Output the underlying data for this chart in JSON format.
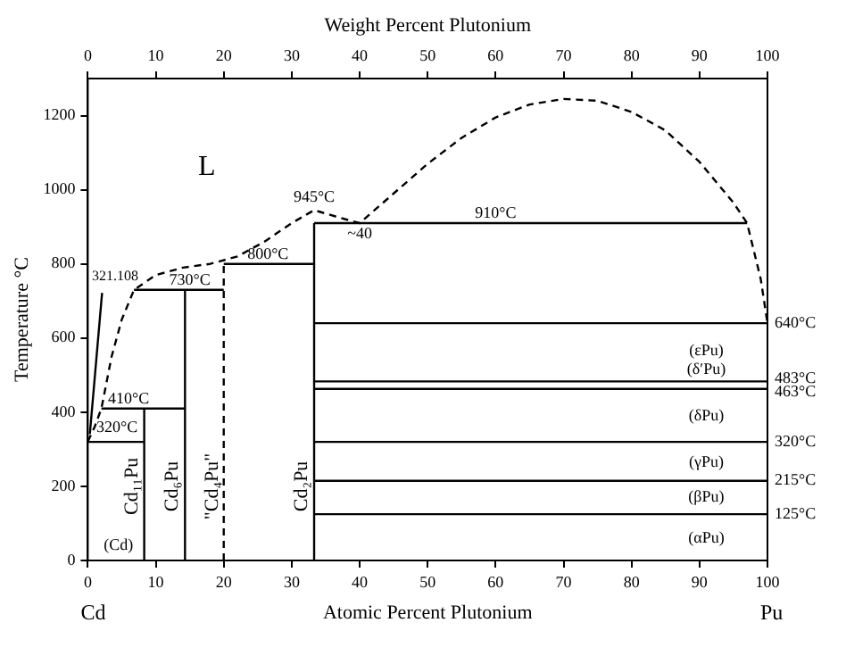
{
  "chart_data": {
    "type": "line",
    "xlabel": "Atomic Percent Plutonium",
    "x2label": "Weight Percent Plutonium",
    "ylabel": "Temperature °C",
    "xlim": [
      0,
      100
    ],
    "xticks": [
      0,
      10,
      20,
      30,
      40,
      50,
      60,
      70,
      80,
      90,
      100
    ],
    "x2lim": [
      0,
      100
    ],
    "x2ticks": [
      0,
      10,
      20,
      30,
      40,
      50,
      60,
      70,
      80,
      90,
      100
    ],
    "ylim": [
      0,
      1300
    ],
    "yticks": [
      0,
      200,
      400,
      600,
      800,
      1000,
      1200
    ],
    "grid": false,
    "legend": false,
    "marker": "none",
    "series": [
      {
        "color": "#000000",
        "line_style": "dashed",
        "x": [
          0,
          1,
          2,
          3.5,
          5,
          6.8,
          10,
          14,
          18,
          22,
          26,
          30,
          33.3,
          37,
          40,
          45,
          50,
          55,
          60,
          65,
          70,
          75,
          80,
          85,
          90,
          95,
          97,
          99,
          100
        ],
        "values": [
          321,
          360,
          410,
          550,
          650,
          730,
          770,
          790,
          800,
          820,
          860,
          910,
          945,
          925,
          910,
          990,
          1070,
          1140,
          1195,
          1230,
          1245,
          1240,
          1210,
          1160,
          1075,
          965,
          910,
          760,
          640
        ]
      },
      {
        "type": "line",
        "color": "#000000",
        "line_style": "solid",
        "x": [
          0.3,
          2.1
        ],
        "values": [
          341,
          722
        ]
      },
      {
        "type": "line",
        "color": "#000000",
        "line_style": "solid",
        "x": [
          0,
          8.3
        ],
        "values": [
          320,
          320
        ]
      },
      {
        "type": "line",
        "color": "#000000",
        "line_style": "solid",
        "x": [
          2,
          14.3
        ],
        "values": [
          410,
          410
        ]
      },
      {
        "type": "line",
        "color": "#000000",
        "line_style": "solid",
        "x": [
          6.8,
          20
        ],
        "values": [
          730,
          730
        ]
      },
      {
        "type": "line",
        "color": "#000000",
        "line_style": "solid",
        "x": [
          20,
          33.3
        ],
        "values": [
          800,
          800
        ]
      },
      {
        "type": "line",
        "color": "#000000",
        "line_style": "solid",
        "x": [
          33.3,
          97
        ],
        "values": [
          910,
          910
        ]
      },
      {
        "type": "line",
        "color": "#000000",
        "line_style": "solid",
        "x": [
          8.3,
          8.3
        ],
        "values": [
          0,
          410
        ]
      },
      {
        "type": "line",
        "color": "#000000",
        "line_style": "solid",
        "x": [
          14.3,
          14.3
        ],
        "values": [
          0,
          730
        ]
      },
      {
        "type": "line",
        "color": "#000000",
        "line_style": "dashed",
        "x": [
          20,
          20
        ],
        "values": [
          0,
          800
        ]
      },
      {
        "type": "line",
        "color": "#000000",
        "line_style": "solid",
        "x": [
          33.3,
          33.3
        ],
        "values": [
          0,
          910
        ]
      },
      {
        "type": "line",
        "color": "#000000",
        "line_style": "solid",
        "x": [
          33.3,
          100
        ],
        "values": [
          640,
          640
        ]
      },
      {
        "type": "line",
        "color": "#000000",
        "line_style": "solid",
        "x": [
          33.3,
          100
        ],
        "values": [
          483,
          483
        ]
      },
      {
        "type": "line",
        "color": "#000000",
        "line_style": "solid",
        "x": [
          33.3,
          100
        ],
        "values": [
          463,
          463
        ]
      },
      {
        "type": "line",
        "color": "#000000",
        "line_style": "solid",
        "x": [
          33.3,
          100
        ],
        "values": [
          320,
          320
        ]
      },
      {
        "type": "line",
        "color": "#000000",
        "line_style": "solid",
        "x": [
          33.3,
          100
        ],
        "values": [
          215,
          215
        ]
      },
      {
        "type": "line",
        "color": "#000000",
        "line_style": "solid",
        "x": [
          33.3,
          100
        ],
        "values": [
          125,
          125
        ]
      }
    ],
    "annotations": [
      "Cd",
      "Pu",
      "L",
      "945°C",
      "~40",
      "910°C",
      "800°C",
      "730°C",
      "410°C",
      "320°C",
      "321.108",
      "(Cd)",
      "(εPu)",
      "(δ′Pu)",
      "(δPu)",
      "(γPu)",
      "(βPu)",
      "(αPu)",
      "Cd₁₁Pu",
      "Cd₆Pu",
      "\"Cd₄Pu\"",
      "Cd₂Pu",
      "640°C",
      "483°C",
      "463°C",
      "320°C",
      "215°C",
      "125°C"
    ]
  }
}
